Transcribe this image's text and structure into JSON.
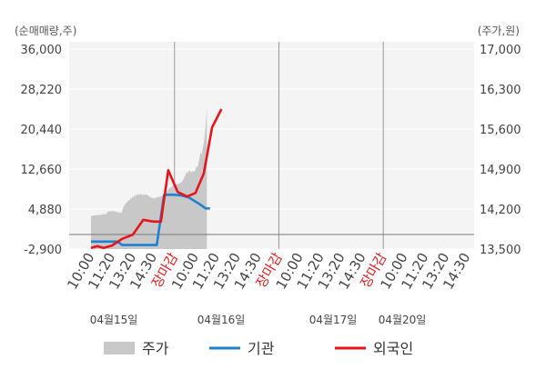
{
  "chart_data": {
    "type": "line",
    "left_axis_unit": "(순매매량,주)",
    "right_axis_unit": "(주가,원)",
    "left_ticks": [
      "36,000",
      "28,220",
      "20,440",
      "12,660",
      "4,880",
      "-2,900"
    ],
    "right_ticks": [
      "17,000",
      "16,300",
      "15,600",
      "14,900",
      "14,200",
      "13,500"
    ],
    "left_range": [
      -2900,
      36000
    ],
    "right_range": [
      13500,
      17000
    ],
    "x_tick_labels": [
      "10:00",
      "11:20",
      "13:20",
      "14:30",
      "장마감",
      "10:00",
      "11:20",
      "13:20",
      "14:30",
      "장마감",
      "10:00",
      "11:20",
      "13:20",
      "14:30",
      "장마감",
      "10:00",
      "11:20",
      "13:20",
      "14:30"
    ],
    "date_labels": [
      "04월15일",
      "04월16일",
      "04월17일",
      "04월20일"
    ],
    "legend": [
      "주가",
      "기관",
      "외국인"
    ],
    "colors": {
      "price": "#c8c8c8",
      "institution": "#1f7fd0",
      "foreign": "#e8141c"
    },
    "price_series": [
      [
        0.0,
        14080
      ],
      [
        0.05,
        14075
      ],
      [
        0.1,
        14090
      ],
      [
        0.15,
        14085
      ],
      [
        0.2,
        14095
      ],
      [
        0.25,
        14085
      ],
      [
        0.3,
        14100
      ],
      [
        0.35,
        14095
      ],
      [
        0.4,
        14090
      ],
      [
        0.45,
        14100
      ],
      [
        0.5,
        14095
      ],
      [
        0.55,
        14110
      ],
      [
        0.6,
        14100
      ],
      [
        0.65,
        14115
      ],
      [
        0.7,
        14105
      ],
      [
        0.75,
        14120
      ],
      [
        0.8,
        14150
      ],
      [
        0.85,
        14160
      ],
      [
        0.9,
        14155
      ],
      [
        0.95,
        14165
      ],
      [
        1.0,
        14160
      ],
      [
        1.05,
        14170
      ],
      [
        1.1,
        14160
      ],
      [
        1.15,
        14150
      ],
      [
        1.2,
        14160
      ],
      [
        1.25,
        14140
      ],
      [
        1.3,
        14150
      ],
      [
        1.35,
        14130
      ],
      [
        1.4,
        14140
      ],
      [
        1.45,
        14125
      ],
      [
        1.5,
        14180
      ],
      [
        1.55,
        14230
      ],
      [
        1.6,
        14260
      ],
      [
        1.65,
        14300
      ],
      [
        1.7,
        14310
      ],
      [
        1.75,
        14330
      ],
      [
        1.8,
        14360
      ],
      [
        1.85,
        14350
      ],
      [
        1.9,
        14390
      ],
      [
        1.95,
        14380
      ],
      [
        2.0,
        14420
      ],
      [
        2.05,
        14400
      ],
      [
        2.1,
        14450
      ],
      [
        2.15,
        14420
      ],
      [
        2.2,
        14470
      ],
      [
        2.25,
        14440
      ],
      [
        2.3,
        14460
      ],
      [
        2.35,
        14450
      ],
      [
        2.4,
        14470
      ],
      [
        2.45,
        14440
      ],
      [
        2.5,
        14450
      ],
      [
        2.55,
        14460
      ],
      [
        2.6,
        14445
      ],
      [
        2.65,
        14455
      ],
      [
        2.7,
        14450
      ],
      [
        2.75,
        14430
      ],
      [
        2.8,
        14420
      ],
      [
        2.85,
        14410
      ],
      [
        2.9,
        14400
      ],
      [
        2.95,
        14390
      ],
      [
        3.0,
        14380
      ],
      [
        3.05,
        14400
      ],
      [
        3.1,
        14390
      ],
      [
        3.15,
        14410
      ],
      [
        3.2,
        14400
      ],
      [
        3.25,
        14420
      ],
      [
        3.3,
        14410
      ],
      [
        3.35,
        14430
      ],
      [
        3.4,
        14420
      ],
      [
        3.45,
        14440
      ],
      [
        3.5,
        14430
      ],
      [
        3.55,
        14470
      ],
      [
        3.6,
        14500
      ],
      [
        3.65,
        14520
      ],
      [
        3.7,
        14540
      ],
      [
        3.75,
        14560
      ],
      [
        3.8,
        14580
      ],
      [
        3.85,
        14570
      ],
      [
        3.9,
        14600
      ],
      [
        3.95,
        14620
      ],
      [
        4.0,
        14640
      ],
      [
        4.05,
        14620
      ],
      [
        4.1,
        14650
      ],
      [
        4.15,
        14630
      ],
      [
        4.2,
        14640
      ],
      [
        4.25,
        14650
      ],
      [
        4.3,
        14660
      ],
      [
        4.35,
        14680
      ],
      [
        4.4,
        14700
      ],
      [
        4.45,
        14740
      ],
      [
        4.5,
        14780
      ],
      [
        4.55,
        14820
      ],
      [
        4.6,
        14850
      ],
      [
        4.65,
        14830
      ],
      [
        4.7,
        14880
      ],
      [
        4.75,
        14860
      ],
      [
        4.8,
        14840
      ],
      [
        4.85,
        14870
      ],
      [
        4.9,
        14850
      ],
      [
        4.95,
        14860
      ],
      [
        5.0,
        14880
      ],
      [
        5.05,
        14950
      ],
      [
        5.1,
        14930
      ],
      [
        5.15,
        15000
      ],
      [
        5.2,
        15100
      ],
      [
        5.25,
        15200
      ],
      [
        5.3,
        15150
      ],
      [
        5.35,
        15250
      ],
      [
        5.4,
        15350
      ],
      [
        5.45,
        15500
      ],
      [
        5.5,
        15700
      ],
      [
        5.55,
        16000
      ]
    ],
    "institution_series": [
      [
        0.0,
        13630
      ],
      [
        0.5,
        13630
      ],
      [
        1.0,
        13630
      ],
      [
        1.25,
        13630
      ],
      [
        1.5,
        13570
      ],
      [
        2.0,
        13570
      ],
      [
        2.5,
        13570
      ],
      [
        3.0,
        13570
      ],
      [
        3.15,
        13570
      ],
      [
        3.5,
        14450
      ],
      [
        4.0,
        14450
      ],
      [
        4.3,
        14440
      ],
      [
        4.7,
        14400
      ],
      [
        5.1,
        14310
      ],
      [
        5.5,
        14210
      ],
      [
        5.7,
        14210
      ]
    ],
    "foreign_series": [
      [
        0.0,
        13520
      ],
      [
        0.3,
        13550
      ],
      [
        0.6,
        13520
      ],
      [
        1.0,
        13560
      ],
      [
        1.5,
        13680
      ],
      [
        2.0,
        13750
      ],
      [
        2.5,
        14010
      ],
      [
        3.0,
        13980
      ],
      [
        3.35,
        13980
      ],
      [
        3.7,
        14880
      ],
      [
        4.15,
        14500
      ],
      [
        4.6,
        14420
      ],
      [
        5.0,
        14480
      ],
      [
        5.4,
        14820
      ],
      [
        5.8,
        15630
      ],
      [
        6.25,
        15950
      ]
    ]
  }
}
